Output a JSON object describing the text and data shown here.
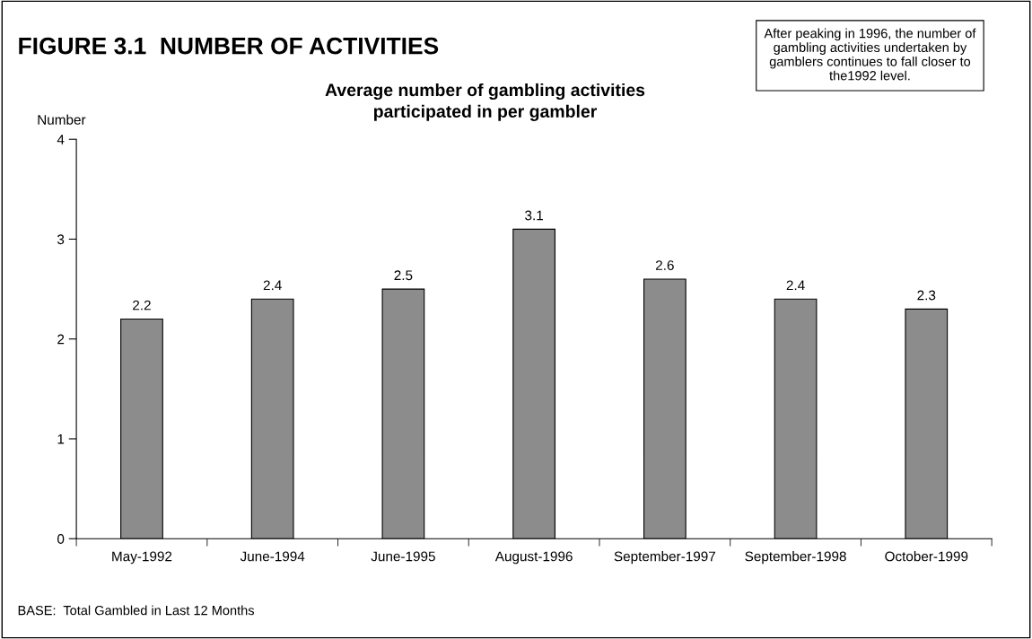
{
  "chart_data": {
    "type": "bar",
    "title": "FIGURE 3.1  NUMBER OF ACTIVITIES",
    "subtitle": "Average number of gambling activities\nparticipated in per gambler",
    "ylabel": "Number",
    "categories": [
      "May-1992",
      "June-1994",
      "June-1995",
      "August-1996",
      "September-1997",
      "September-1998",
      "October-1999"
    ],
    "values": [
      2.2,
      2.4,
      2.5,
      3.1,
      2.6,
      2.4,
      2.3
    ],
    "color": "#8c8c8c",
    "ylim": [
      0,
      4
    ],
    "yticks": [
      0,
      1,
      2,
      3,
      4
    ],
    "grid": false,
    "data_labels": true,
    "annotations": [
      "After peaking in 1996, the number of\ngambling activities undertaken by\ngamblers continues to fall closer to\nthe1992 level.",
      "BASE:  Total Gambled in Last 12 Months"
    ]
  }
}
